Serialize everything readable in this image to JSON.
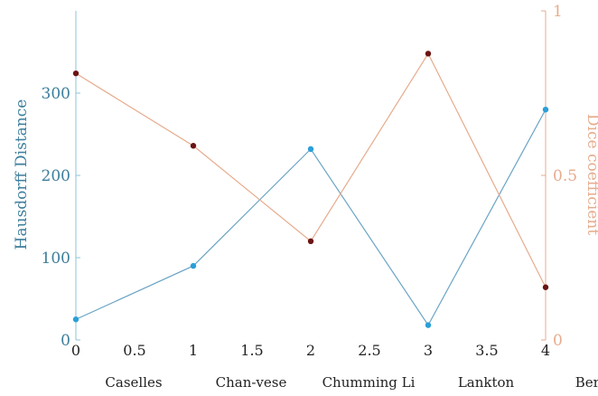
{
  "chart_data": {
    "type": "line",
    "x": [
      0,
      1,
      2,
      3,
      4
    ],
    "xlim": [
      0,
      4
    ],
    "x_tick_labels": [
      "0",
      "0.5",
      "1",
      "1.5",
      "2",
      "2.5",
      "3",
      "3.5",
      "4"
    ],
    "categories": [
      "Caselles",
      "Chan-vese",
      "Chumming Li",
      "Lankton",
      "Bernard"
    ],
    "ylabel_left": "Hausdorff Distance",
    "ylabel_right": "Dice coefficient",
    "ylim_left": [
      0,
      400
    ],
    "ylim_right": [
      0,
      1
    ],
    "y_tick_labels_left": [
      "0",
      "100",
      "200",
      "300"
    ],
    "y_tick_labels_right": [
      "0",
      "0.5",
      "1"
    ],
    "grid": false,
    "series": [
      {
        "axis": "left",
        "color": "#2a9fd8",
        "line_color": "#6aa4c4",
        "values": [
          25,
          90,
          232,
          18,
          280
        ]
      },
      {
        "axis": "right",
        "color": "#6b1414",
        "line_color": "#e6ab8c",
        "values": [
          0.81,
          0.59,
          0.3,
          0.87,
          0.16
        ]
      }
    ],
    "colors": {
      "left_axis": "#3d7e9c",
      "left_axis_line": "#8ec3d9",
      "right_axis": "#e6ab8c"
    }
  }
}
